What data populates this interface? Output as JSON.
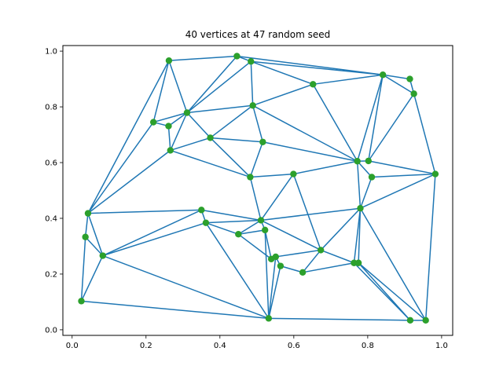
{
  "chart_data": {
    "type": "scatter",
    "title": "40 vertices at 47 random seed",
    "xlabel": "",
    "ylabel": "",
    "xlim": [
      -0.025,
      1.03
    ],
    "ylim": [
      -0.02,
      1.02
    ],
    "xticks": [
      0.0,
      0.2,
      0.4,
      0.6,
      0.8,
      1.0
    ],
    "xtick_labels": [
      "0.0",
      "0.2",
      "0.4",
      "0.6",
      "0.8",
      "1.0"
    ],
    "yticks": [
      0.0,
      0.2,
      0.4,
      0.6,
      0.8,
      1.0
    ],
    "ytick_labels": [
      "0.0",
      "0.2",
      "0.4",
      "0.6",
      "0.8",
      "1.0"
    ],
    "grid": false,
    "edge_color": "#1f77b4",
    "vertex_color": "#2ca02c",
    "vertices": [
      {
        "x": 0.025,
        "y": 0.103
      },
      {
        "x": 0.036,
        "y": 0.333
      },
      {
        "x": 0.043,
        "y": 0.418
      },
      {
        "x": 0.083,
        "y": 0.266
      },
      {
        "x": 0.22,
        "y": 0.745
      },
      {
        "x": 0.262,
        "y": 0.966
      },
      {
        "x": 0.261,
        "y": 0.731
      },
      {
        "x": 0.266,
        "y": 0.644
      },
      {
        "x": 0.311,
        "y": 0.779
      },
      {
        "x": 0.35,
        "y": 0.43
      },
      {
        "x": 0.362,
        "y": 0.384
      },
      {
        "x": 0.374,
        "y": 0.689
      },
      {
        "x": 0.446,
        "y": 0.982
      },
      {
        "x": 0.45,
        "y": 0.343
      },
      {
        "x": 0.484,
        "y": 0.963
      },
      {
        "x": 0.482,
        "y": 0.548
      },
      {
        "x": 0.489,
        "y": 0.805
      },
      {
        "x": 0.511,
        "y": 0.393
      },
      {
        "x": 0.516,
        "y": 0.674
      },
      {
        "x": 0.522,
        "y": 0.358
      },
      {
        "x": 0.532,
        "y": 0.041
      },
      {
        "x": 0.539,
        "y": 0.254
      },
      {
        "x": 0.551,
        "y": 0.262
      },
      {
        "x": 0.564,
        "y": 0.229
      },
      {
        "x": 0.599,
        "y": 0.559
      },
      {
        "x": 0.624,
        "y": 0.206
      },
      {
        "x": 0.652,
        "y": 0.881
      },
      {
        "x": 0.673,
        "y": 0.286
      },
      {
        "x": 0.763,
        "y": 0.24
      },
      {
        "x": 0.772,
        "y": 0.605
      },
      {
        "x": 0.775,
        "y": 0.24
      },
      {
        "x": 0.78,
        "y": 0.436
      },
      {
        "x": 0.802,
        "y": 0.606
      },
      {
        "x": 0.811,
        "y": 0.548
      },
      {
        "x": 0.841,
        "y": 0.915
      },
      {
        "x": 0.914,
        "y": 0.9
      },
      {
        "x": 0.915,
        "y": 0.034
      },
      {
        "x": 0.925,
        "y": 0.847
      },
      {
        "x": 0.957,
        "y": 0.034
      },
      {
        "x": 0.983,
        "y": 0.559
      }
    ],
    "edges": [
      [
        0,
        1
      ],
      [
        0,
        3
      ],
      [
        0,
        20
      ],
      [
        1,
        2
      ],
      [
        1,
        3
      ],
      [
        2,
        3
      ],
      [
        2,
        4
      ],
      [
        2,
        5
      ],
      [
        2,
        7
      ],
      [
        2,
        9
      ],
      [
        3,
        9
      ],
      [
        3,
        10
      ],
      [
        3,
        20
      ],
      [
        4,
        5
      ],
      [
        4,
        6
      ],
      [
        4,
        8
      ],
      [
        5,
        8
      ],
      [
        5,
        12
      ],
      [
        6,
        7
      ],
      [
        6,
        8
      ],
      [
        7,
        8
      ],
      [
        7,
        11
      ],
      [
        7,
        15
      ],
      [
        8,
        11
      ],
      [
        8,
        12
      ],
      [
        8,
        14
      ],
      [
        8,
        16
      ],
      [
        9,
        10
      ],
      [
        9,
        17
      ],
      [
        10,
        13
      ],
      [
        10,
        17
      ],
      [
        10,
        20
      ],
      [
        11,
        16
      ],
      [
        11,
        18
      ],
      [
        11,
        15
      ],
      [
        12,
        14
      ],
      [
        12,
        34
      ],
      [
        13,
        17
      ],
      [
        13,
        21
      ],
      [
        13,
        19
      ],
      [
        14,
        16
      ],
      [
        14,
        26
      ],
      [
        14,
        34
      ],
      [
        15,
        17
      ],
      [
        15,
        18
      ],
      [
        15,
        24
      ],
      [
        16,
        18
      ],
      [
        16,
        26
      ],
      [
        16,
        29
      ],
      [
        17,
        19
      ],
      [
        17,
        24
      ],
      [
        17,
        27
      ],
      [
        17,
        31
      ],
      [
        18,
        29
      ],
      [
        19,
        21
      ],
      [
        19,
        20
      ],
      [
        20,
        22
      ],
      [
        20,
        36
      ],
      [
        21,
        22
      ],
      [
        22,
        23
      ],
      [
        22,
        27
      ],
      [
        23,
        25
      ],
      [
        23,
        20
      ],
      [
        24,
        29
      ],
      [
        24,
        27
      ],
      [
        25,
        27
      ],
      [
        25,
        28
      ],
      [
        26,
        29
      ],
      [
        26,
        34
      ],
      [
        27,
        28
      ],
      [
        27,
        31
      ],
      [
        28,
        31
      ],
      [
        28,
        30
      ],
      [
        28,
        36
      ],
      [
        29,
        34
      ],
      [
        29,
        31
      ],
      [
        29,
        32
      ],
      [
        29,
        33
      ],
      [
        30,
        31
      ],
      [
        30,
        36
      ],
      [
        31,
        33
      ],
      [
        31,
        39
      ],
      [
        31,
        38
      ],
      [
        32,
        34
      ],
      [
        32,
        37
      ],
      [
        33,
        39
      ],
      [
        34,
        35
      ],
      [
        34,
        37
      ],
      [
        35,
        37
      ],
      [
        32,
        39
      ],
      [
        37,
        39
      ],
      [
        38,
        39
      ],
      [
        36,
        38
      ],
      [
        30,
        38
      ]
    ]
  }
}
